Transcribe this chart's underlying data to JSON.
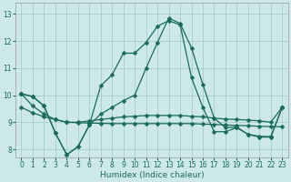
{
  "xlabel": "Humidex (Indice chaleur)",
  "background_color": "#cce8e8",
  "grid_color": "#a8cccc",
  "line_color": "#1a6b5a",
  "xlim": [
    -0.5,
    23.5
  ],
  "ylim": [
    7.7,
    13.4
  ],
  "xticks": [
    0,
    1,
    2,
    3,
    4,
    5,
    6,
    7,
    8,
    9,
    10,
    11,
    12,
    13,
    14,
    15,
    16,
    17,
    18,
    19,
    20,
    21,
    22,
    23
  ],
  "yticks": [
    8,
    9,
    10,
    11,
    12,
    13
  ],
  "curve_main_x": [
    0,
    1,
    2,
    3,
    4,
    5,
    6,
    7,
    8,
    9,
    10,
    11,
    12,
    13,
    14,
    15,
    16,
    17,
    18,
    19,
    20,
    21,
    22,
    23
  ],
  "curve_main_y": [
    10.05,
    9.95,
    9.6,
    8.6,
    7.8,
    8.1,
    8.9,
    10.35,
    10.75,
    11.55,
    11.55,
    11.95,
    12.55,
    12.75,
    12.6,
    10.65,
    9.55,
    8.65,
    8.65,
    8.8,
    8.55,
    8.45,
    8.45,
    9.55
  ],
  "curve_smooth_x": [
    0,
    1,
    2,
    3,
    4,
    5,
    6,
    7,
    8,
    9,
    10,
    11,
    12,
    13,
    14,
    15,
    16,
    17,
    18,
    19,
    20,
    21,
    22,
    23
  ],
  "curve_smooth_y": [
    10.05,
    9.6,
    9.3,
    9.1,
    9.0,
    9.0,
    9.05,
    9.1,
    9.15,
    9.2,
    9.22,
    9.25,
    9.25,
    9.25,
    9.25,
    9.22,
    9.2,
    9.15,
    9.12,
    9.1,
    9.08,
    9.05,
    9.0,
    9.55
  ],
  "curve_flat1_x": [
    0,
    1,
    2,
    3,
    4,
    5,
    6,
    7,
    8,
    9,
    10,
    11,
    12,
    13,
    14,
    15,
    16,
    17,
    18,
    19,
    20,
    21,
    22,
    23
  ],
  "curve_flat1_y": [
    9.55,
    9.35,
    9.2,
    9.1,
    9.0,
    8.98,
    8.97,
    8.96,
    8.95,
    8.95,
    8.95,
    8.95,
    8.95,
    8.95,
    8.95,
    8.95,
    8.93,
    8.92,
    8.9,
    8.88,
    8.87,
    8.85,
    8.84,
    8.83
  ],
  "curve_dip_x": [
    0,
    1,
    2,
    3,
    4,
    5,
    6,
    7,
    8,
    9,
    10,
    11,
    12,
    13,
    14,
    15,
    16,
    17,
    18,
    19,
    20,
    21,
    22,
    23
  ],
  "curve_dip_y": [
    10.05,
    9.95,
    9.6,
    8.6,
    7.8,
    8.1,
    8.9,
    9.3,
    9.55,
    9.8,
    10.0,
    11.0,
    11.95,
    12.85,
    12.65,
    11.75,
    10.4,
    9.15,
    8.8,
    8.82,
    8.55,
    8.48,
    8.47,
    9.55
  ]
}
